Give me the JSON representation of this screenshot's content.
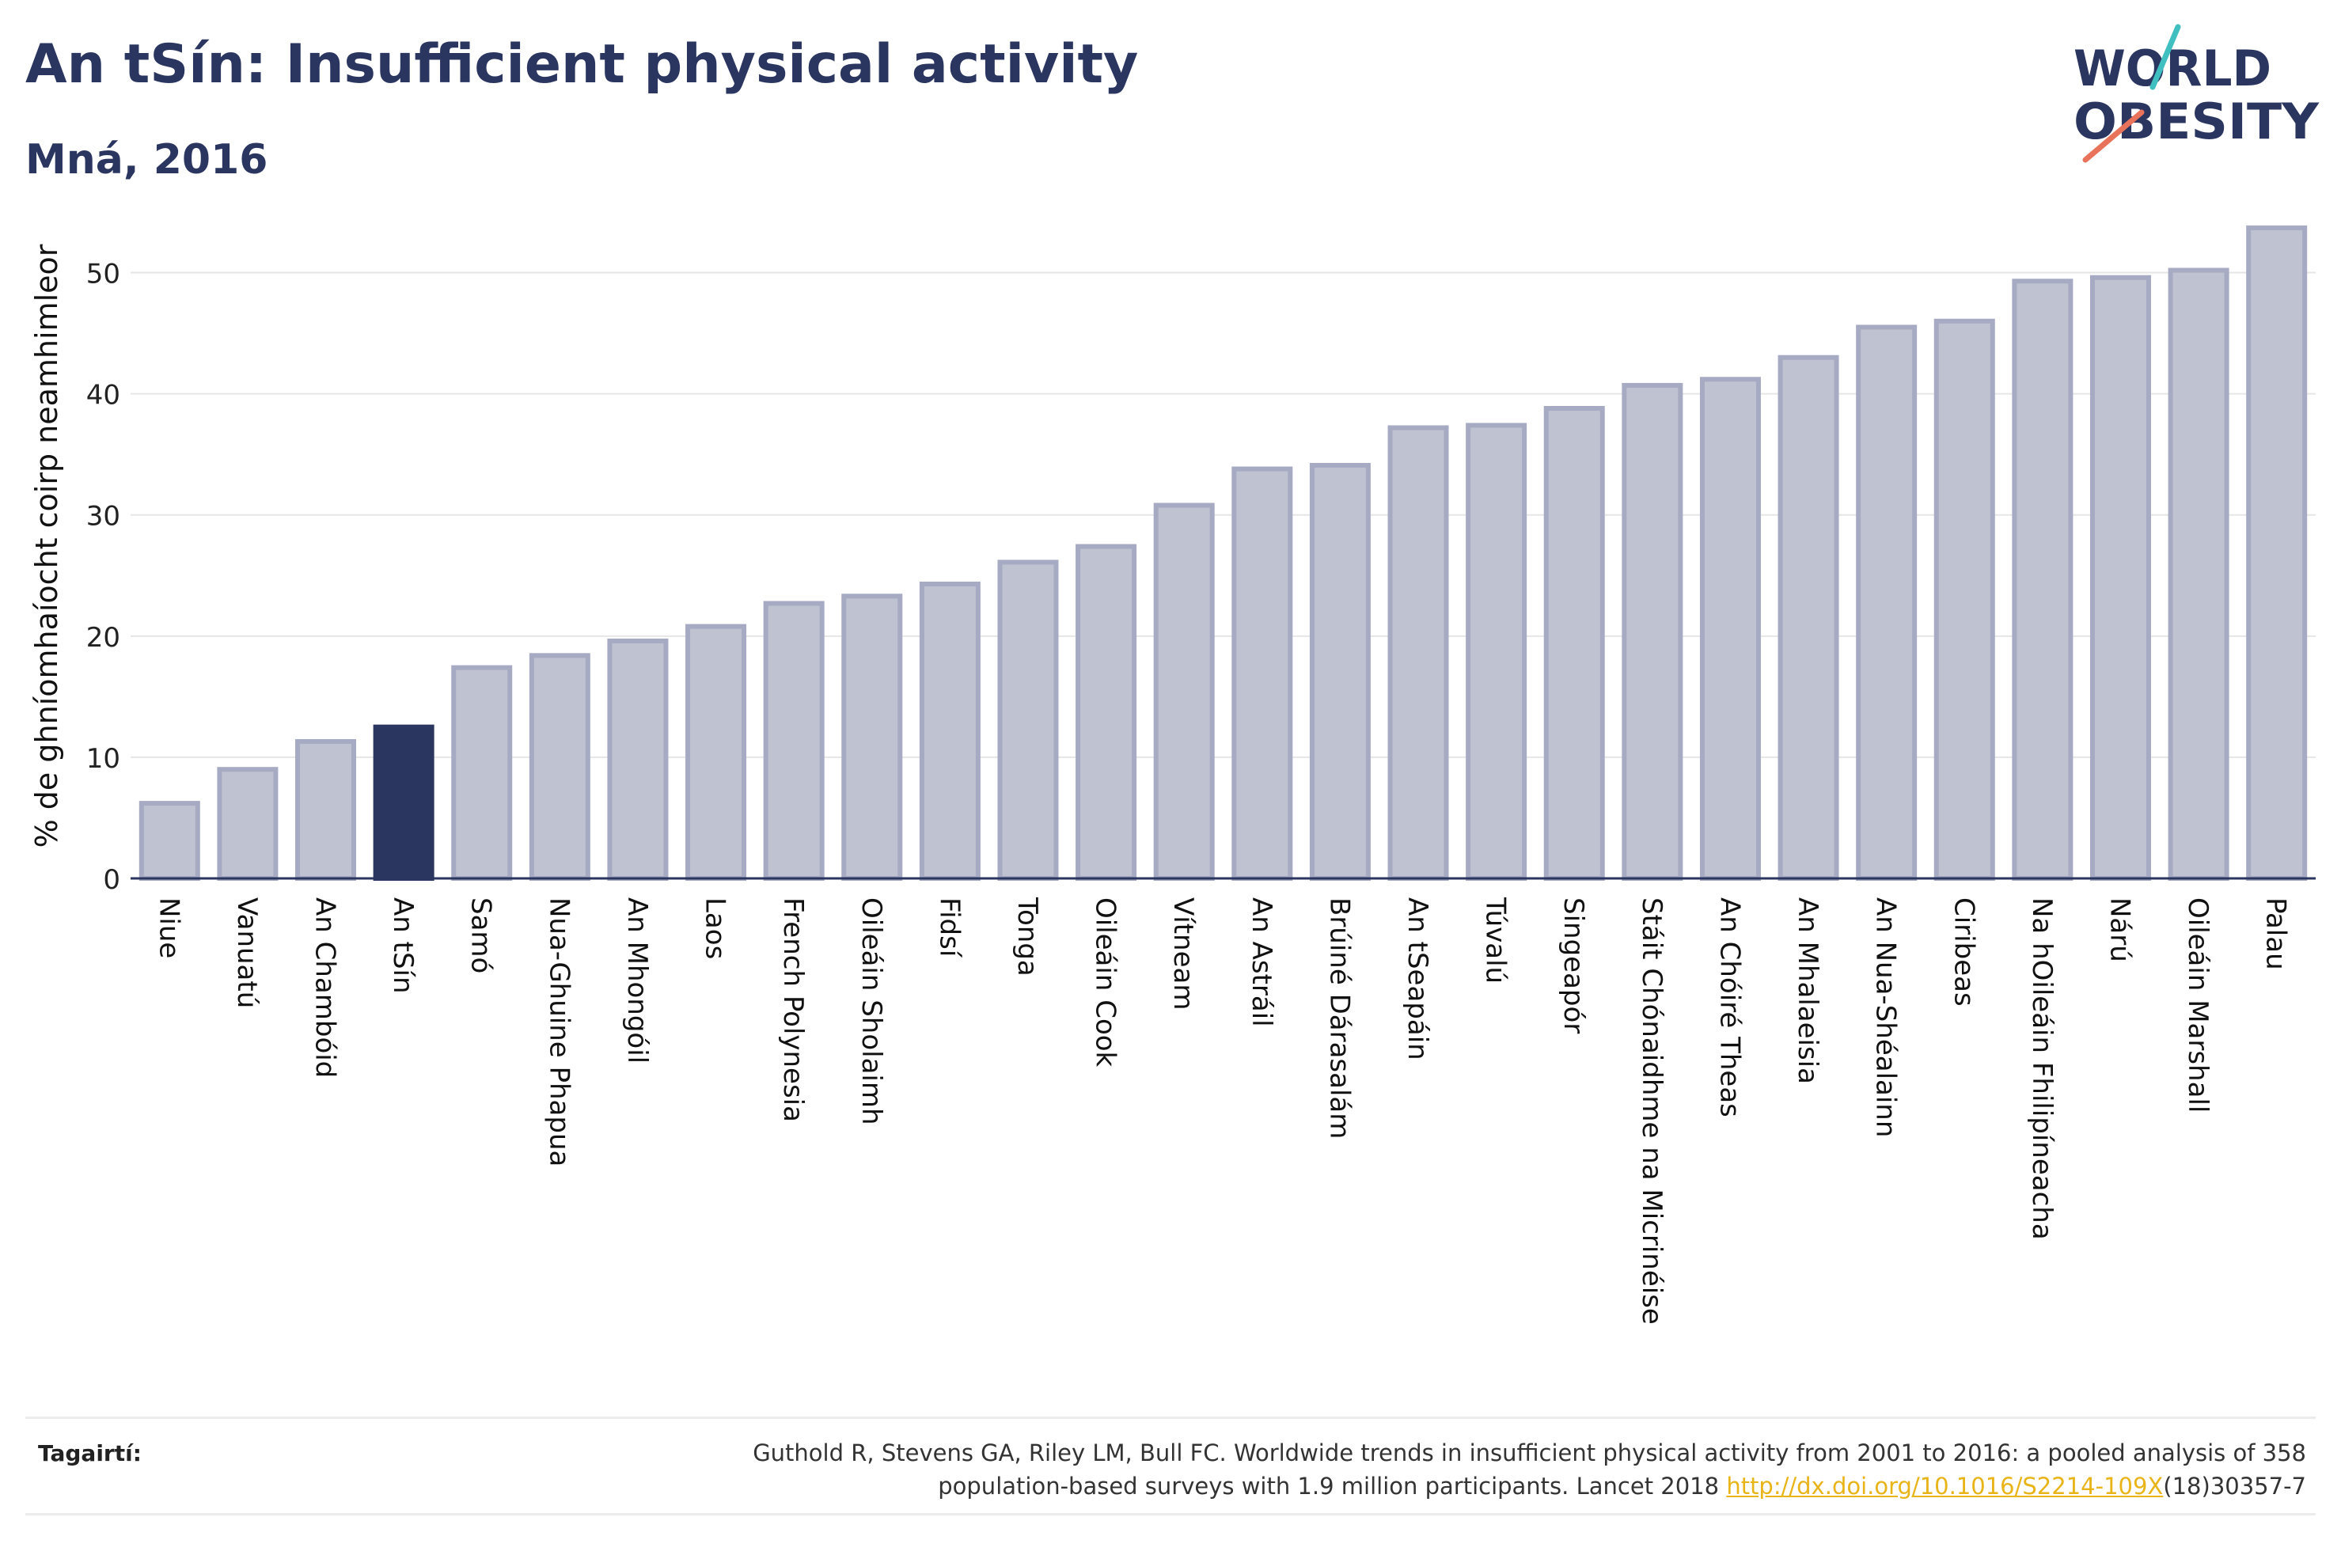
{
  "title": "An tSín: Insufficient physical activity",
  "subtitle": "Mná, 2016",
  "logo": {
    "line1": "WORLD",
    "line2": "OBESITY"
  },
  "references": {
    "label": "Tagairtí:",
    "text_line1": "Guthold R, Stevens GA, Riley LM, Bull FC. Worldwide trends in insufficient physical activity from 2001 to 2016: a pooled analysis of 358",
    "text_line2_before": "population-based surveys with 1.9 million participants. Lancet 2018 ",
    "link": "http://dx.doi.org/10.1016/S2214-109X",
    "text_line2_after": "(18)30357-7"
  },
  "colors": {
    "bar": "#bfc2d0",
    "bar_edge": "#a6aac2",
    "highlight": "#2b3660",
    "text": "#2b3660",
    "logo_slash_teal": "#3fbfbf",
    "logo_slash_coral": "#e8735a"
  },
  "chart_data": {
    "type": "bar",
    "ylabel": "% de ghníomhaíocht coirp neamhimleor",
    "ylim": [
      0,
      55
    ],
    "yticks": [
      0,
      10,
      20,
      30,
      40,
      50
    ],
    "grid": true,
    "highlight": "An tSín",
    "categories": [
      "Niue",
      "Vanuatú",
      "An Chambóid",
      "An tSín",
      "Samó",
      "Nua-Ghuine Phapua",
      "An Mhongóil",
      "Laos",
      "French Polynesia",
      "Oileáin Sholaimh",
      "Fidsí",
      "Tonga",
      "Oileáin Cook",
      "Vítneam",
      "An Astráil",
      "Brúiné Dárasalám",
      "An tSeapáin",
      "Túvalú",
      "Singeapór",
      "Stáit Chónaidhme na Micrinéise",
      "An Chóiré Theas",
      "An Mhalaeisia",
      "An Nua-Shéalainn",
      "Ciribeas",
      "Na hOileáin Fhilipíneacha",
      "Nárú",
      "Oileáin Marshall",
      "Palau"
    ],
    "values": [
      6.2,
      9.0,
      11.3,
      12.5,
      17.4,
      18.4,
      19.6,
      20.8,
      22.7,
      23.3,
      24.3,
      26.1,
      27.4,
      30.8,
      33.8,
      34.1,
      37.2,
      37.4,
      38.8,
      40.7,
      41.2,
      43.0,
      45.5,
      46.0,
      49.3,
      49.6,
      50.2,
      53.7
    ]
  }
}
